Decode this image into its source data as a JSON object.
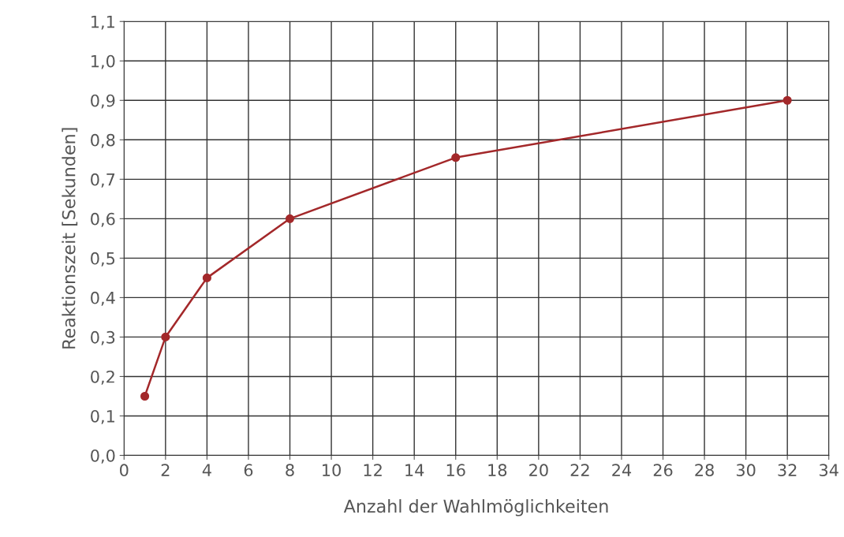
{
  "chart_data": {
    "type": "line",
    "xlabel": "Anzahl der Wahlmöglichkeiten",
    "ylabel": "Reaktionszeit [Sekunden]",
    "x": [
      1,
      2,
      4,
      8,
      16,
      32
    ],
    "series": [
      {
        "color": "#a3282a",
        "values": [
          0.15,
          0.3,
          0.45,
          0.6,
          0.755,
          0.9
        ]
      }
    ],
    "xlim": [
      0,
      34
    ],
    "xticks": [
      0,
      2,
      4,
      6,
      8,
      10,
      12,
      14,
      16,
      18,
      20,
      22,
      24,
      26,
      28,
      30,
      32,
      34
    ],
    "ylim": [
      0,
      1.1
    ],
    "yticks": [
      {
        "value": 0,
        "label": "0,0"
      },
      {
        "value": 0.1,
        "label": "0,1"
      },
      {
        "value": 0.2,
        "label": "0,2"
      },
      {
        "value": 0.3,
        "label": "0,3"
      },
      {
        "value": 0.4,
        "label": "0,4"
      },
      {
        "value": 0.5,
        "label": "0,5"
      },
      {
        "value": 0.6,
        "label": "0,6"
      },
      {
        "value": 0.7,
        "label": "0,7"
      },
      {
        "value": 0.8,
        "label": "0,8"
      },
      {
        "value": 0.9,
        "label": "0,9"
      },
      {
        "value": 1.0,
        "label": "1,0"
      },
      {
        "value": 1.1,
        "label": "1,1"
      }
    ],
    "grid": true,
    "marker": "circle",
    "line_style": "solid",
    "legend": false
  }
}
